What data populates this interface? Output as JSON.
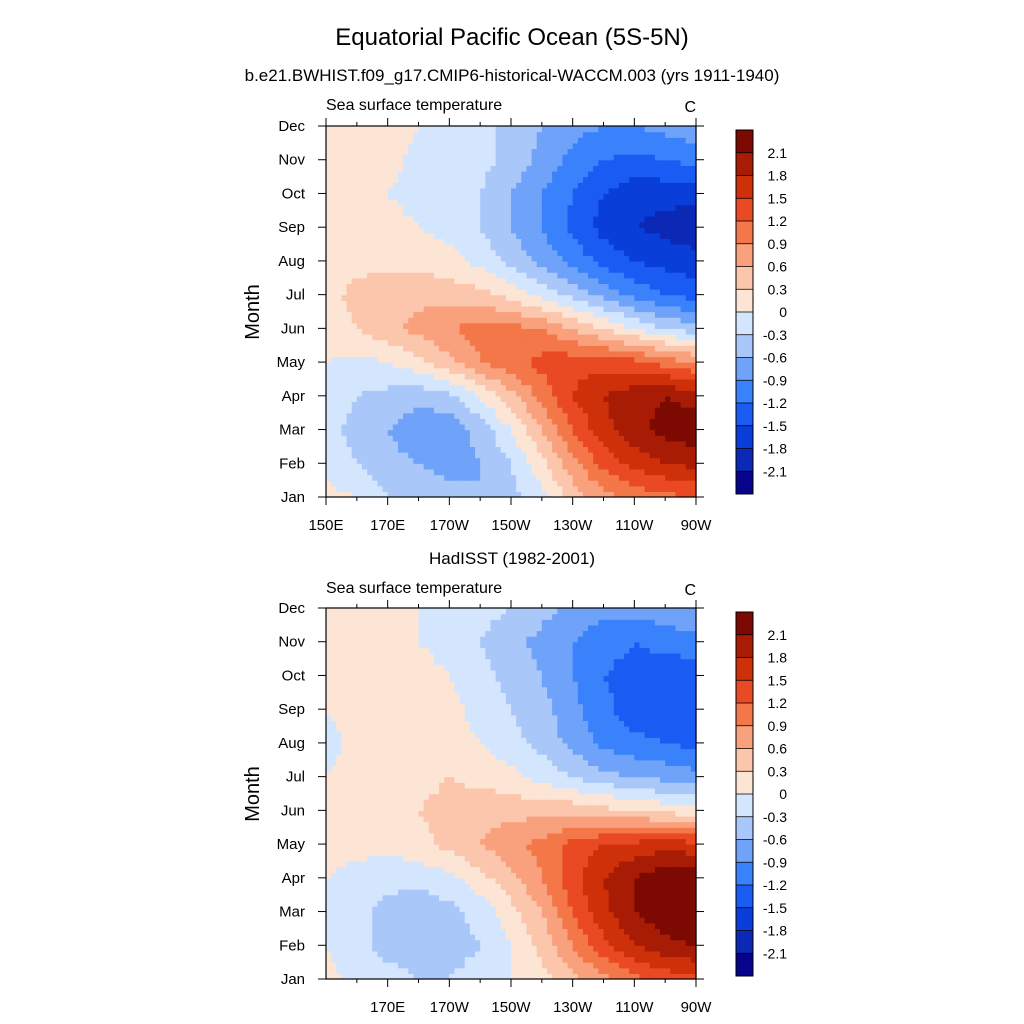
{
  "figure": {
    "title": "Equatorial Pacific Ocean (5S-5N)"
  },
  "chart_data": [
    {
      "type": "heatmap",
      "title": "b.e21.BWHIST.f09_g17.CMIP6-historical-WACCM.003 (yrs 1911-1940)",
      "left_label": "Sea surface temperature",
      "right_label": "C",
      "ylabel": "Month",
      "xlabel": "",
      "x_tick_labels": [
        "150E",
        "170E",
        "170W",
        "150W",
        "130W",
        "110W",
        "90W"
      ],
      "x_tick_values": [
        150,
        170,
        190,
        210,
        230,
        250,
        270
      ],
      "y_tick_labels": [
        "Jan",
        "Feb",
        "Mar",
        "Apr",
        "May",
        "Jun",
        "Jul",
        "Aug",
        "Sep",
        "Oct",
        "Nov",
        "Dec"
      ],
      "xlim": [
        150,
        270
      ],
      "ylim": [
        1,
        12
      ],
      "x": [
        150,
        160,
        170,
        180,
        190,
        200,
        210,
        220,
        230,
        240,
        250,
        260,
        270
      ],
      "y": [
        1,
        2,
        3,
        4,
        5,
        6,
        7,
        8,
        9,
        10,
        11,
        12
      ],
      "z": [
        [
          0.1,
          0.0,
          -0.3,
          -0.4,
          -0.5,
          -0.6,
          -0.4,
          -0.1,
          0.4,
          0.8,
          1.0,
          1.1,
          1.2
        ],
        [
          -0.1,
          -0.3,
          -0.5,
          -0.6,
          -0.7,
          -0.6,
          -0.3,
          0.2,
          0.8,
          1.3,
          1.6,
          1.8,
          1.9
        ],
        [
          -0.2,
          -0.4,
          -0.6,
          -0.8,
          -0.8,
          -0.5,
          0.0,
          0.6,
          1.2,
          1.7,
          2.0,
          2.2,
          2.3
        ],
        [
          -0.1,
          -0.3,
          -0.4,
          -0.5,
          -0.4,
          0.0,
          0.5,
          1.0,
          1.5,
          1.8,
          2.0,
          2.1,
          2.0
        ],
        [
          0.0,
          -0.1,
          0.0,
          0.2,
          0.5,
          0.9,
          1.1,
          1.3,
          1.4,
          1.4,
          1.3,
          1.1,
          0.9
        ],
        [
          0.1,
          0.3,
          0.5,
          0.7,
          0.9,
          1.0,
          1.0,
          0.9,
          0.6,
          0.3,
          0.0,
          -0.3,
          -0.5
        ],
        [
          0.2,
          0.4,
          0.5,
          0.5,
          0.5,
          0.4,
          0.2,
          -0.1,
          -0.4,
          -0.7,
          -1.0,
          -1.2,
          -1.3
        ],
        [
          0.0,
          0.2,
          0.2,
          0.2,
          0.1,
          -0.1,
          -0.4,
          -0.7,
          -1.0,
          -1.3,
          -1.5,
          -1.6,
          -1.7
        ],
        [
          0.1,
          0.1,
          0.1,
          0.0,
          -0.1,
          -0.3,
          -0.6,
          -0.9,
          -1.3,
          -1.6,
          -1.8,
          -1.9,
          -2.0
        ],
        [
          0.2,
          0.1,
          0.0,
          -0.1,
          -0.2,
          -0.3,
          -0.6,
          -0.9,
          -1.2,
          -1.5,
          -1.7,
          -1.7,
          -1.7
        ],
        [
          0.2,
          0.2,
          0.1,
          -0.1,
          -0.1,
          -0.2,
          -0.4,
          -0.7,
          -1.0,
          -1.2,
          -1.3,
          -1.2,
          -1.1
        ],
        [
          0.2,
          0.2,
          0.2,
          0.0,
          -0.1,
          -0.2,
          -0.4,
          -0.6,
          -0.8,
          -0.9,
          -0.9,
          -0.8,
          -0.7
        ]
      ],
      "colorbar": {
        "levels": [
          -2.1,
          -1.8,
          -1.5,
          -1.2,
          -0.9,
          -0.6,
          -0.3,
          0,
          0.3,
          0.6,
          0.9,
          1.2,
          1.5,
          1.8,
          2.1
        ],
        "labels": [
          "-2.1",
          "-1.8",
          "-1.5",
          "-1.2",
          "-0.9",
          "-0.6",
          "-0.3",
          "0",
          "0.3",
          "0.6",
          "0.9",
          "1.2",
          "1.5",
          "1.8",
          "2.1"
        ],
        "colors": [
          "#08038b",
          "#0b29b5",
          "#0a3ed9",
          "#1a5cf3",
          "#3a82fb",
          "#6fa2f9",
          "#a9c8f9",
          "#d4e6fd",
          "#fde5d5",
          "#fcc6ad",
          "#f9a07c",
          "#f47749",
          "#e94923",
          "#ce300a",
          "#a81c05",
          "#7d0a02"
        ]
      },
      "grid": false,
      "legend": "right"
    },
    {
      "type": "heatmap",
      "title": "HadISST (1982-2001)",
      "left_label": "Sea surface temperature",
      "right_label": "C",
      "ylabel": "Month",
      "xlabel": "",
      "x_tick_labels": [
        "170E",
        "170W",
        "150W",
        "130W",
        "110W",
        "90W"
      ],
      "x_tick_values": [
        170,
        190,
        210,
        230,
        250,
        270
      ],
      "y_tick_labels": [
        "Jan",
        "Feb",
        "Mar",
        "Apr",
        "May",
        "Jun",
        "Jul",
        "Aug",
        "Sep",
        "Oct",
        "Nov",
        "Dec"
      ],
      "xlim": [
        150,
        270
      ],
      "ylim": [
        1,
        12
      ],
      "x": [
        150,
        160,
        170,
        180,
        190,
        200,
        210,
        220,
        230,
        240,
        250,
        260,
        270
      ],
      "y": [
        1,
        2,
        3,
        4,
        5,
        6,
        7,
        8,
        9,
        10,
        11,
        12
      ],
      "z": [
        [
          0.1,
          -0.1,
          -0.2,
          -0.3,
          -0.3,
          -0.2,
          0.0,
          0.2,
          0.5,
          0.8,
          1.1,
          1.3,
          1.4
        ],
        [
          0.0,
          -0.2,
          -0.4,
          -0.4,
          -0.4,
          -0.3,
          0.0,
          0.4,
          0.9,
          1.4,
          1.8,
          2.0,
          2.1
        ],
        [
          -0.1,
          -0.2,
          -0.4,
          -0.5,
          -0.4,
          -0.2,
          0.2,
          0.6,
          1.2,
          1.7,
          2.1,
          2.3,
          2.4
        ],
        [
          0.0,
          -0.1,
          -0.2,
          -0.2,
          -0.1,
          0.2,
          0.5,
          0.9,
          1.4,
          1.8,
          2.1,
          2.3,
          2.3
        ],
        [
          0.1,
          0.1,
          0.1,
          0.2,
          0.4,
          0.6,
          0.8,
          1.0,
          1.3,
          1.5,
          1.6,
          1.7,
          1.6
        ],
        [
          0.1,
          0.2,
          0.2,
          0.3,
          0.4,
          0.5,
          0.5,
          0.5,
          0.5,
          0.4,
          0.3,
          0.2,
          0.1
        ],
        [
          0.0,
          0.1,
          0.2,
          0.2,
          0.3,
          0.2,
          0.1,
          -0.1,
          -0.3,
          -0.5,
          -0.6,
          -0.7,
          -0.8
        ],
        [
          -0.1,
          0.1,
          0.2,
          0.2,
          0.1,
          0.0,
          -0.2,
          -0.4,
          -0.7,
          -1.0,
          -1.1,
          -1.2,
          -1.3
        ],
        [
          0.0,
          0.1,
          0.2,
          0.3,
          0.1,
          -0.1,
          -0.3,
          -0.5,
          -0.8,
          -1.1,
          -1.4,
          -1.5,
          -1.5
        ],
        [
          0.1,
          0.1,
          0.1,
          0.1,
          0.0,
          -0.2,
          -0.4,
          -0.6,
          -0.9,
          -1.2,
          -1.3,
          -1.4,
          -1.4
        ],
        [
          0.2,
          0.2,
          0.1,
          0.0,
          -0.1,
          -0.3,
          -0.5,
          -0.7,
          -0.9,
          -1.1,
          -1.2,
          -1.1,
          -1.0
        ],
        [
          0.3,
          0.2,
          0.1,
          0.0,
          -0.1,
          -0.2,
          -0.3,
          -0.5,
          -0.7,
          -0.8,
          -0.8,
          -0.7,
          -0.6
        ]
      ],
      "colorbar": {
        "levels": [
          -2.1,
          -1.8,
          -1.5,
          -1.2,
          -0.9,
          -0.6,
          -0.3,
          0,
          0.3,
          0.6,
          0.9,
          1.2,
          1.5,
          1.8,
          2.1
        ],
        "labels": [
          "-2.1",
          "-1.8",
          "-1.5",
          "-1.2",
          "-0.9",
          "-0.6",
          "-0.3",
          "0",
          "0.3",
          "0.6",
          "0.9",
          "1.2",
          "1.5",
          "1.8",
          "2.1"
        ],
        "colors": [
          "#08038b",
          "#0b29b5",
          "#0a3ed9",
          "#1a5cf3",
          "#3a82fb",
          "#6fa2f9",
          "#a9c8f9",
          "#d4e6fd",
          "#fde5d5",
          "#fcc6ad",
          "#f9a07c",
          "#f47749",
          "#e94923",
          "#ce300a",
          "#a81c05",
          "#7d0a02"
        ]
      },
      "grid": false,
      "legend": "right"
    }
  ]
}
